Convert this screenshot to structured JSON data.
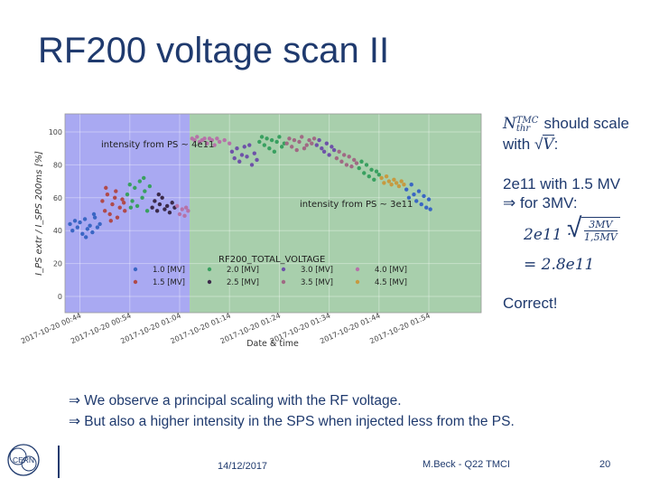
{
  "slide": {
    "title": "RF200 voltage scan II",
    "bullets": [
      "⇒ We observe a principal scaling with the RF voltage.",
      "⇒ But also a higher intensity in the SPS when injected less from the PS."
    ],
    "date": "14/12/2017",
    "author": "M.Beck - Q22 TMCI",
    "page_number": "20",
    "logo_text": "CERN"
  },
  "annotation": {
    "line1_sym": "N",
    "line1_sup": "TMC",
    "line1_sub": "thr",
    "line1_text": "should scale",
    "line2_pre": "with",
    "line2_sqrt": "V",
    "line2_post": ":",
    "line3": "2e11 with 1.5 MV",
    "line4": "⇒ for 3MV:",
    "formula_lhs": "2e11 ·",
    "formula_num": "3MV",
    "formula_den": "1,5MV",
    "formula_result": "= 2.8e11",
    "verdict": "Correct!"
  },
  "chart_data": {
    "type": "scatter",
    "ylabel": "I_PS extr / I_SPS 200ms [%]",
    "xlabel": "Date & time",
    "ylim": [
      0,
      100
    ],
    "yticks": [
      0,
      20,
      40,
      60,
      80,
      100
    ],
    "xticks": [
      "2017-10-20 00:44",
      "2017-10-20 00:54",
      "2017-10-20 01:04",
      "2017-10-20 01:14",
      "2017-10-20 01:24",
      "2017-10-20 01:34",
      "2017-10-20 01:44",
      "2017-10-20 01:54"
    ],
    "xlim_minutes_after_0044": [
      -3,
      80.5
    ],
    "regions": [
      {
        "label": "intensity from PS ~ 4e11",
        "x_from": -3,
        "x_to": 22,
        "color": "#a9a9f2"
      },
      {
        "label": "intensity from PS ~ 3e11",
        "x_from": 22,
        "x_to": 80.5,
        "color": "#a8cfac"
      }
    ],
    "legend": {
      "title": "RF200_TOTAL_VOLTAGE",
      "placement": "bottom-center",
      "entries": [
        {
          "name": "1.0 [MV]",
          "color": "#3a66c4"
        },
        {
          "name": "2.0 [MV]",
          "color": "#39a060"
        },
        {
          "name": "3.0 [MV]",
          "color": "#6e52a8"
        },
        {
          "name": "4.0 [MV]",
          "color": "#b672a8"
        },
        {
          "name": "1.5 [MV]",
          "color": "#b04a4a"
        },
        {
          "name": "2.5 [MV]",
          "color": "#3b2a4a"
        },
        {
          "name": "3.5 [MV]",
          "color": "#a06a84"
        },
        {
          "name": "4.5 [MV]",
          "color": "#c69a40"
        }
      ]
    },
    "series": [
      {
        "name": "1.0 [MV]",
        "color": "#3a66c4",
        "points": [
          [
            -2,
            44
          ],
          [
            -1.5,
            40
          ],
          [
            -1,
            46
          ],
          [
            -0.5,
            42
          ],
          [
            0,
            45
          ],
          [
            0.5,
            38
          ],
          [
            1,
            47
          ],
          [
            1.5,
            41
          ],
          [
            2,
            43
          ],
          [
            2.5,
            39
          ],
          [
            3,
            48
          ],
          [
            3.5,
            42
          ],
          [
            4,
            44
          ],
          [
            1.2,
            36
          ],
          [
            2.8,
            50
          ]
        ]
      },
      {
        "name": "1.5 [MV]",
        "color": "#b04a4a",
        "points": [
          [
            4.5,
            58
          ],
          [
            5,
            52
          ],
          [
            5.5,
            62
          ],
          [
            6,
            50
          ],
          [
            6.5,
            56
          ],
          [
            7,
            60
          ],
          [
            7.5,
            48
          ],
          [
            8,
            54
          ],
          [
            8.5,
            59
          ],
          [
            9,
            52
          ],
          [
            5.2,
            66
          ],
          [
            7.2,
            64
          ],
          [
            8.8,
            57
          ],
          [
            6.2,
            46
          ]
        ]
      },
      {
        "name": "2.0 [MV]",
        "color": "#39a060",
        "points": [
          [
            9.5,
            62
          ],
          [
            10,
            68
          ],
          [
            10.5,
            58
          ],
          [
            11,
            66
          ],
          [
            11.5,
            55
          ],
          [
            12,
            70
          ],
          [
            12.5,
            60
          ],
          [
            13,
            64
          ],
          [
            13.5,
            52
          ],
          [
            14,
            67
          ],
          [
            10.2,
            54
          ],
          [
            12.8,
            72
          ]
        ]
      },
      {
        "name": "2.5 [MV]",
        "color": "#3b2a4a",
        "points": [
          [
            14.5,
            54
          ],
          [
            15,
            58
          ],
          [
            15.5,
            52
          ],
          [
            16,
            56
          ],
          [
            16.5,
            60
          ],
          [
            17,
            53
          ],
          [
            17.5,
            55
          ],
          [
            18,
            51
          ],
          [
            18.5,
            57
          ],
          [
            19,
            54
          ],
          [
            15.8,
            62
          ]
        ]
      },
      {
        "name": "4.0 [MV]",
        "color": "#b672a8",
        "points": [
          [
            19.5,
            55
          ],
          [
            20,
            50
          ],
          [
            20.5,
            53
          ],
          [
            21,
            49
          ],
          [
            21.3,
            54
          ],
          [
            21.7,
            52
          ],
          [
            22.5,
            96
          ],
          [
            23,
            95
          ],
          [
            23.5,
            97
          ],
          [
            24,
            94
          ],
          [
            24.5,
            95
          ],
          [
            25,
            96
          ],
          [
            25.5,
            93
          ],
          [
            26,
            96
          ],
          [
            26.5,
            95
          ],
          [
            27,
            92
          ],
          [
            27.5,
            96
          ],
          [
            28,
            94
          ],
          [
            29,
            95
          ],
          [
            30,
            93
          ]
        ]
      },
      {
        "name": "3.0 [MV]",
        "color": "#6e52a8",
        "points": [
          [
            30.5,
            88
          ],
          [
            31,
            84
          ],
          [
            31.5,
            90
          ],
          [
            32,
            82
          ],
          [
            32.5,
            86
          ],
          [
            33,
            91
          ],
          [
            33.5,
            85
          ],
          [
            34,
            92
          ],
          [
            34.5,
            80
          ],
          [
            35,
            87
          ],
          [
            35.5,
            83
          ]
        ]
      },
      {
        "name": "2.0 [MV]",
        "color": "#39a060",
        "points": [
          [
            36,
            94
          ],
          [
            36.5,
            97
          ],
          [
            37,
            92
          ],
          [
            37.5,
            96
          ],
          [
            38,
            90
          ],
          [
            38.5,
            95
          ],
          [
            39,
            88
          ],
          [
            39.5,
            94
          ],
          [
            40,
            97
          ],
          [
            40.5,
            91
          ],
          [
            41,
            93
          ]
        ]
      },
      {
        "name": "3.5 [MV]",
        "color": "#a06a84",
        "points": [
          [
            41.5,
            93
          ],
          [
            42,
            96
          ],
          [
            42.5,
            91
          ],
          [
            43,
            95
          ],
          [
            43.5,
            89
          ],
          [
            44,
            94
          ],
          [
            44.5,
            97
          ],
          [
            45,
            90
          ],
          [
            45.5,
            92
          ],
          [
            46,
            95
          ],
          [
            46.5,
            93
          ],
          [
            47,
            96
          ]
        ]
      },
      {
        "name": "3.0 [MV]",
        "color": "#6e52a8",
        "points": [
          [
            47.5,
            92
          ],
          [
            48,
            95
          ],
          [
            48.5,
            90
          ],
          [
            49,
            88
          ],
          [
            49.5,
            93
          ],
          [
            50,
            86
          ],
          [
            50.5,
            91
          ],
          [
            51,
            89
          ]
        ]
      },
      {
        "name": "3.5 [MV]",
        "color": "#a06a84",
        "points": [
          [
            51.5,
            84
          ],
          [
            52,
            88
          ],
          [
            52.5,
            82
          ],
          [
            53,
            86
          ],
          [
            53.5,
            80
          ],
          [
            54,
            85
          ],
          [
            54.5,
            79
          ],
          [
            55,
            83
          ],
          [
            55.5,
            81
          ]
        ]
      },
      {
        "name": "2.0 [MV]",
        "color": "#39a060",
        "points": [
          [
            56,
            78
          ],
          [
            56.5,
            82
          ],
          [
            57,
            75
          ],
          [
            57.5,
            80
          ],
          [
            58,
            73
          ],
          [
            58.5,
            77
          ],
          [
            59,
            71
          ],
          [
            59.5,
            76
          ],
          [
            60,
            74
          ]
        ]
      },
      {
        "name": "4.5 [MV]",
        "color": "#c69a40",
        "points": [
          [
            60.5,
            72
          ],
          [
            61,
            69
          ],
          [
            61.5,
            73
          ],
          [
            62,
            70
          ],
          [
            62.5,
            68
          ],
          [
            63,
            71
          ],
          [
            63.5,
            69
          ],
          [
            64,
            67
          ],
          [
            64.5,
            70
          ],
          [
            65,
            68
          ]
        ]
      },
      {
        "name": "1.0 [MV]",
        "color": "#3a66c4",
        "points": [
          [
            65.5,
            65
          ],
          [
            66,
            60
          ],
          [
            66.5,
            68
          ],
          [
            67,
            62
          ],
          [
            67.5,
            58
          ],
          [
            68,
            64
          ],
          [
            68.5,
            56
          ],
          [
            69,
            61
          ],
          [
            69.5,
            54
          ],
          [
            70,
            59
          ],
          [
            70.3,
            53
          ]
        ]
      }
    ]
  }
}
